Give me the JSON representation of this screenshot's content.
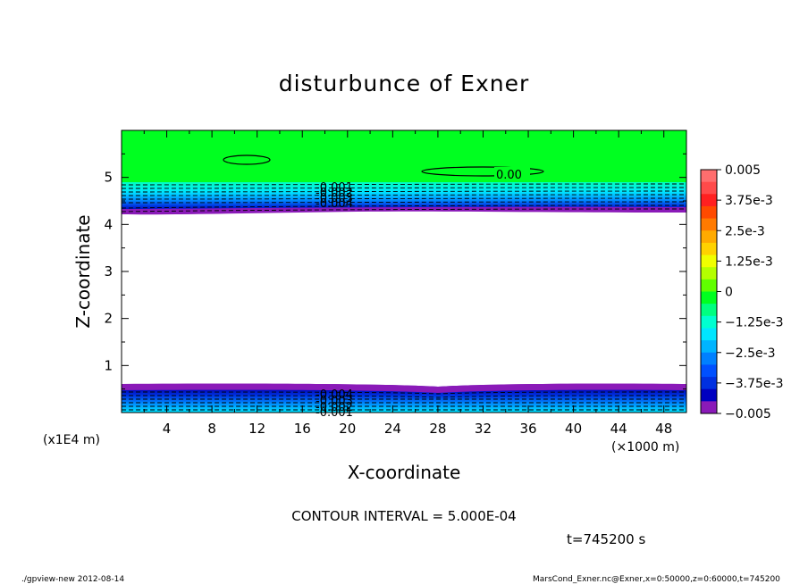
{
  "chart_data": {
    "type": "heatmap",
    "title": "disturbunce of Exner",
    "xlabel": "X-coordinate",
    "ylabel": "Z-coordinate",
    "x_unit": "(×1000 m)",
    "y_unit": "(x1E4 m)",
    "xlim": [
      0,
      50
    ],
    "ylim": [
      0,
      6
    ],
    "x_ticks": [
      "4",
      "8",
      "12",
      "16",
      "20",
      "24",
      "28",
      "32",
      "36",
      "40",
      "44",
      "48"
    ],
    "y_ticks": [
      "1",
      "2",
      "3",
      "4",
      "5"
    ],
    "colorbar_labels": [
      "0.005",
      "3.75e-3",
      "2.5e-3",
      "1.25e-3",
      "0",
      "−1.25e-3",
      "−2.5e-3",
      "−3.75e-3",
      "−0.005"
    ],
    "colorbar_range": [
      -0.005,
      0.005
    ],
    "contour_labels": [
      "0.00",
      "-0.001",
      "-0.002",
      "-0.003",
      "-0.004"
    ],
    "colors": {
      "positive_zone": "#00ff20",
      "light_blue": "#00e6ff",
      "blue": "#0050ff",
      "dark_blue": "#0000c0",
      "purple": "#8a1ab8"
    }
  },
  "annotations": {
    "contour_interval": "CONTOUR INTERVAL = 5.000E-04",
    "time": "t=745200 s"
  },
  "footer": {
    "left": "./gpview-new  2012-08-14",
    "right": "MarsCond_Exner.nc@Exner,x=0:50000,z=0:60000,t=745200"
  }
}
